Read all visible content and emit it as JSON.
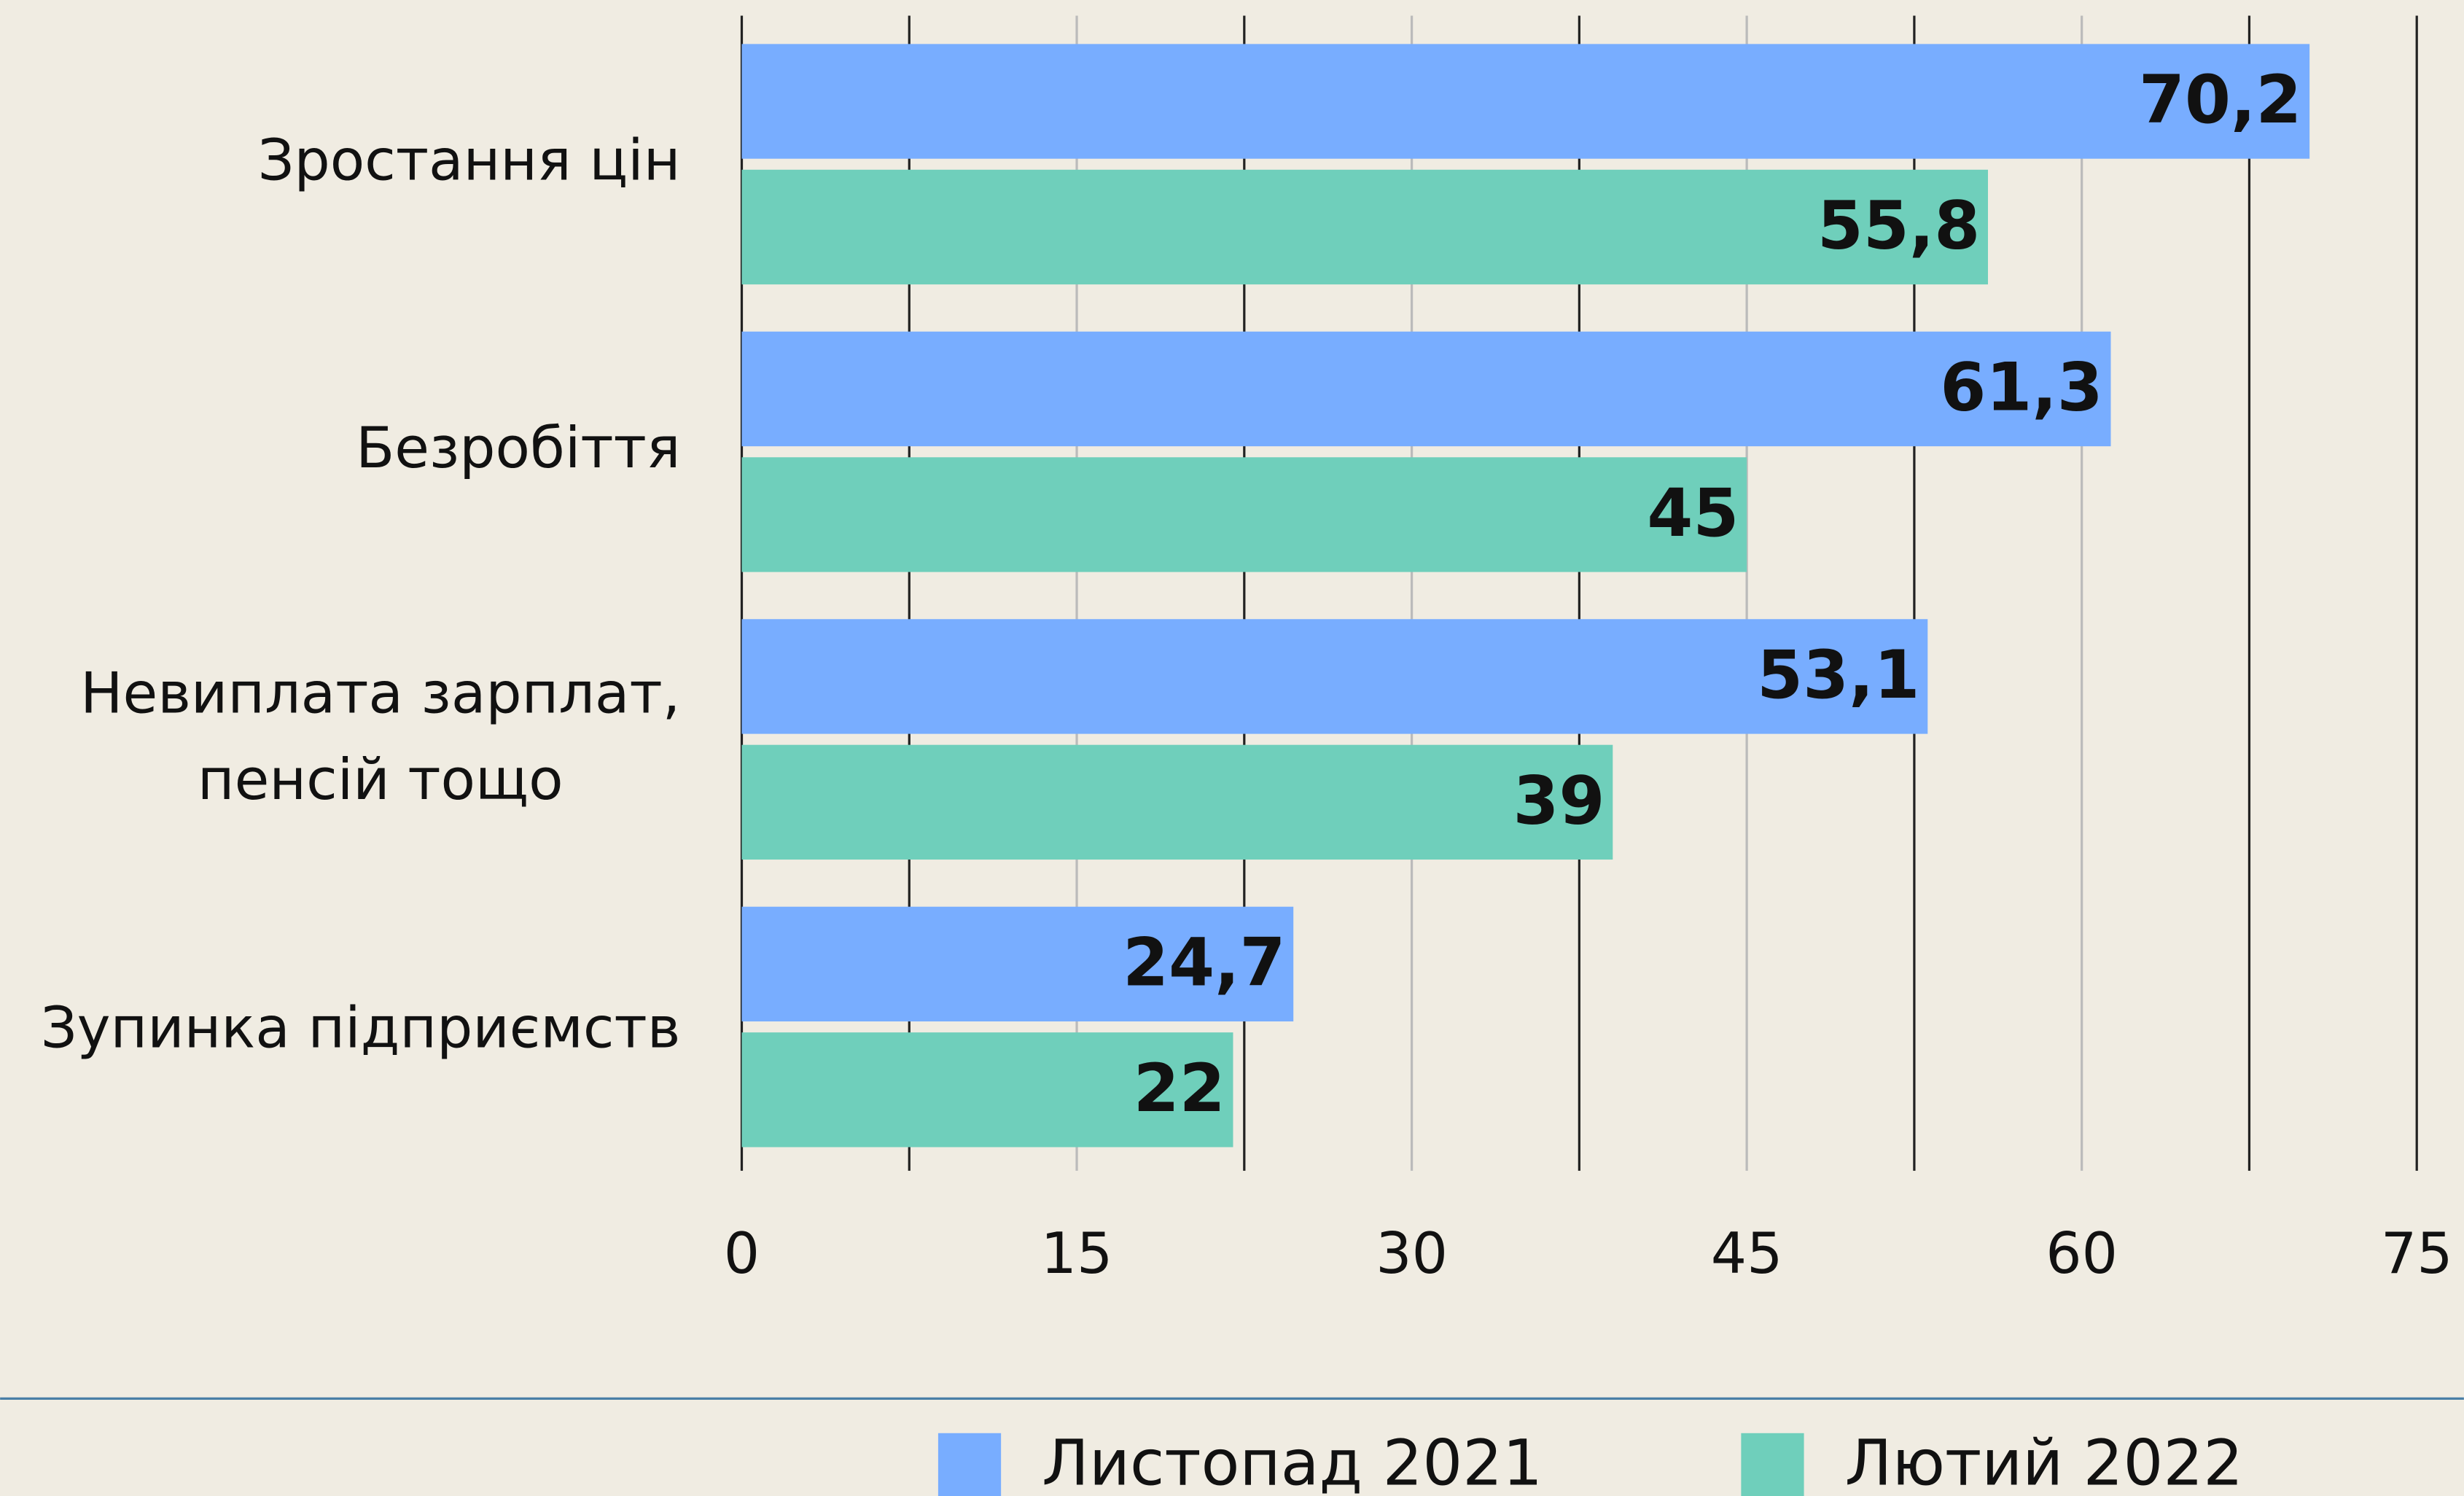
{
  "chart_data": {
    "type": "hbar",
    "categories": [
      "Зростання цін",
      "Безробіття",
      [
        "Невиплата зарплат,",
        "пенсій тощо"
      ],
      "Зупинка підприємств"
    ],
    "series": [
      {
        "name": "Листопад 2021",
        "color": "#78adff",
        "values": [
          70.2,
          61.3,
          53.1,
          24.7
        ],
        "value_labels": [
          "70,2",
          "61,3",
          "53,1",
          "24,7"
        ]
      },
      {
        "name": "Лютий 2022",
        "color": "#6fcfbb",
        "values": [
          55.8,
          45,
          39,
          22
        ],
        "value_labels": [
          "55,8",
          "45",
          "39",
          "22"
        ]
      }
    ],
    "xlim": [
      0,
      75
    ],
    "xticks": [
      0,
      15,
      30,
      45,
      60,
      75
    ],
    "xminor": [
      7.5,
      22.5,
      37.5,
      52.5,
      67.5
    ],
    "grid": true,
    "legend": "bottom"
  }
}
